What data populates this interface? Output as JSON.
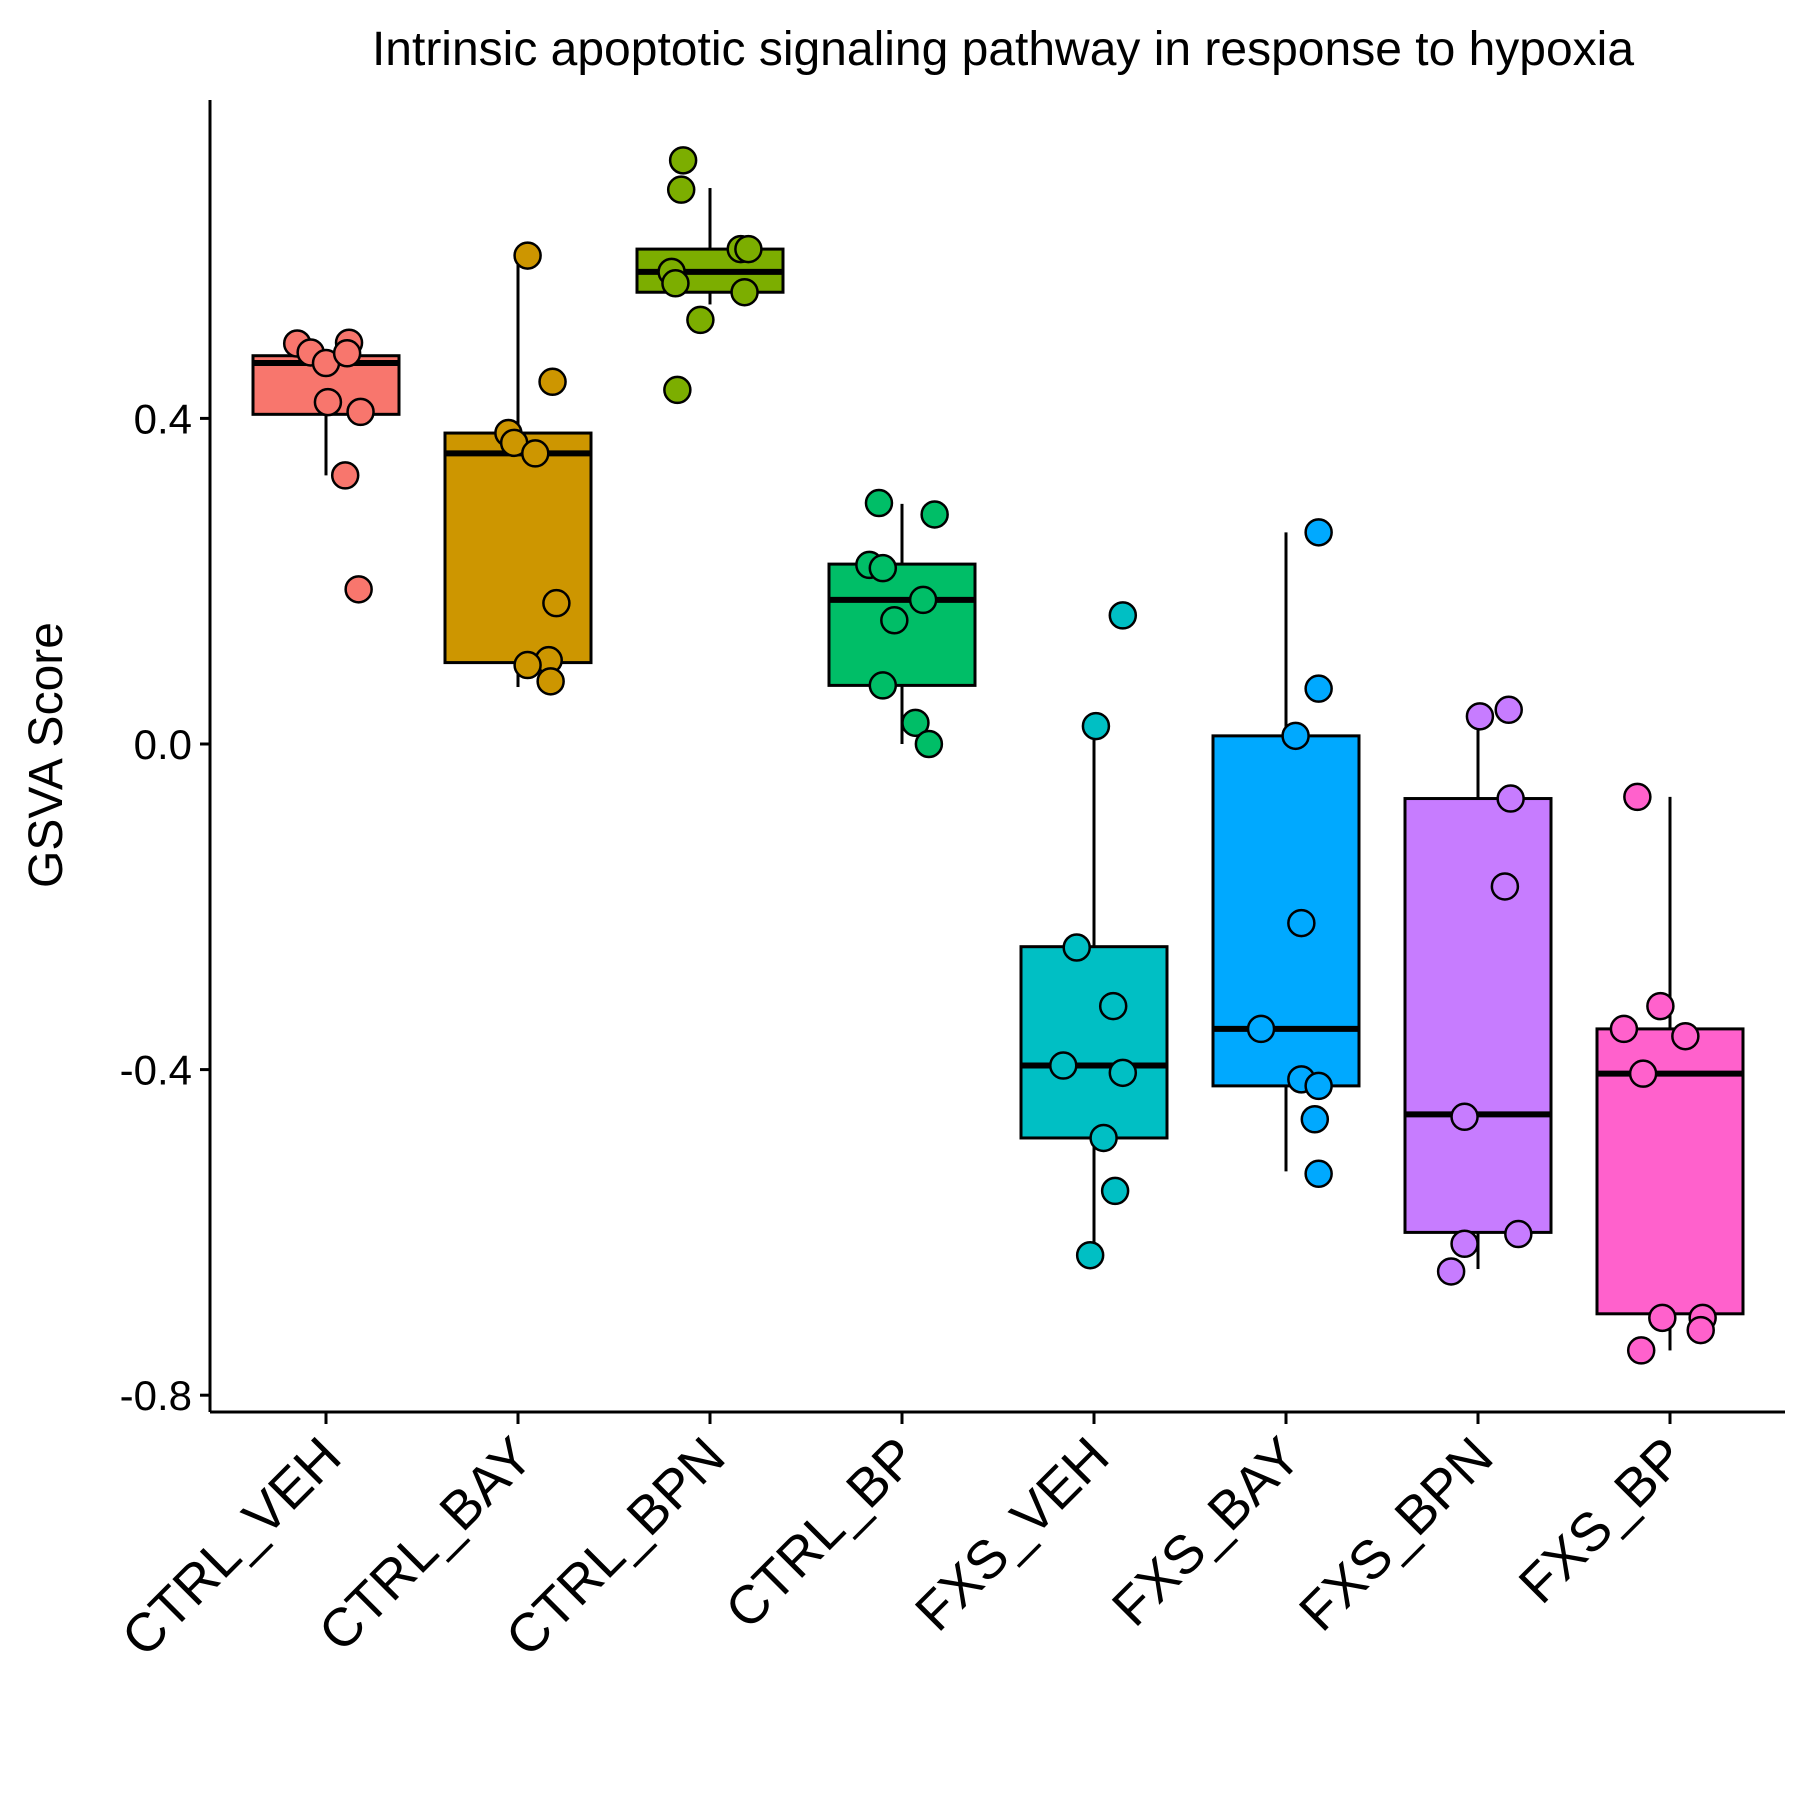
{
  "chart_data": {
    "type": "box",
    "title": "Intrinsic apoptotic signaling pathway in response to hypoxia",
    "xlabel": "",
    "ylabel": "GSVA Score",
    "ylim": [
      -0.82,
      0.79
    ],
    "yticks": [
      -0.8,
      -0.4,
      0.0,
      0.4
    ],
    "ytick_labels": [
      "-0.8",
      "-0.4",
      "0.0",
      "0.4"
    ],
    "grid": false,
    "legend": "none",
    "categories": [
      "CTRL_VEH",
      "CTRL_BAY",
      "CTRL_BPN",
      "CTRL_BP",
      "FXS_VEH",
      "FXS_BAY",
      "FXS_BPN",
      "FXS_BP"
    ],
    "colors": [
      "#F8766D",
      "#CD9600",
      "#7CAE00",
      "#00BE67",
      "#00BFC4",
      "#00A9FF",
      "#C77CFF",
      "#FF61CC"
    ],
    "boxes": [
      {
        "q1": 0.405,
        "median": 0.468,
        "q3": 0.477,
        "whisker_low": 0.33,
        "whisker_high": 0.477
      },
      {
        "q1": 0.1,
        "median": 0.357,
        "q3": 0.382,
        "whisker_low": 0.07,
        "whisker_high": 0.6
      },
      {
        "q1": 0.555,
        "median": 0.58,
        "q3": 0.608,
        "whisker_low": 0.54,
        "whisker_high": 0.683
      },
      {
        "q1": 0.072,
        "median": 0.177,
        "q3": 0.221,
        "whisker_low": 0.0,
        "whisker_high": 0.295
      },
      {
        "q1": -0.484,
        "median": -0.395,
        "q3": -0.249,
        "whisker_low": -0.625,
        "whisker_high": 0.022
      },
      {
        "q1": -0.42,
        "median": -0.35,
        "q3": 0.01,
        "whisker_low": -0.525,
        "whisker_high": 0.26
      },
      {
        "q1": -0.6,
        "median": -0.455,
        "q3": -0.067,
        "whisker_low": -0.645,
        "whisker_high": 0.04
      },
      {
        "q1": -0.7,
        "median": -0.405,
        "q3": -0.35,
        "whisker_low": -0.745,
        "whisker_high": -0.065
      }
    ],
    "points": [
      [
        [
          -0.15,
          0.492
        ],
        [
          -0.08,
          0.481
        ],
        [
          0.0,
          0.468
        ],
        [
          0.12,
          0.493
        ],
        [
          0.11,
          0.48
        ],
        [
          0.01,
          0.42
        ],
        [
          0.18,
          0.408
        ],
        [
          0.1,
          0.33
        ],
        [
          0.17,
          0.19
        ]
      ],
      [
        [
          0.05,
          0.6
        ],
        [
          0.18,
          0.445
        ],
        [
          -0.05,
          0.382
        ],
        [
          -0.02,
          0.37
        ],
        [
          0.09,
          0.357
        ],
        [
          0.2,
          0.173
        ],
        [
          0.16,
          0.103
        ],
        [
          0.05,
          0.097
        ],
        [
          0.17,
          0.077
        ]
      ],
      [
        [
          -0.14,
          0.717
        ],
        [
          -0.15,
          0.681
        ],
        [
          0.16,
          0.608
        ],
        [
          0.2,
          0.608
        ],
        [
          -0.2,
          0.58
        ],
        [
          -0.18,
          0.566
        ],
        [
          0.18,
          0.555
        ],
        [
          -0.05,
          0.521
        ],
        [
          -0.17,
          0.435
        ]
      ],
      [
        [
          -0.12,
          0.296
        ],
        [
          0.17,
          0.282
        ],
        [
          -0.17,
          0.22
        ],
        [
          -0.1,
          0.216
        ],
        [
          0.11,
          0.177
        ],
        [
          -0.04,
          0.152
        ],
        [
          -0.1,
          0.072
        ],
        [
          0.07,
          0.026
        ],
        [
          0.14,
          0.0
        ]
      ],
      [
        [
          0.15,
          0.158
        ],
        [
          0.01,
          0.022
        ],
        [
          -0.09,
          -0.25
        ],
        [
          0.1,
          -0.322
        ],
        [
          -0.16,
          -0.395
        ],
        [
          0.15,
          -0.404
        ],
        [
          0.05,
          -0.484
        ],
        [
          0.11,
          -0.549
        ],
        [
          -0.02,
          -0.628
        ]
      ],
      [
        [
          0.17,
          0.26
        ],
        [
          0.17,
          0.068
        ],
        [
          0.05,
          0.01
        ],
        [
          0.08,
          -0.22
        ],
        [
          -0.13,
          -0.35
        ],
        [
          0.08,
          -0.412
        ],
        [
          0.17,
          -0.42
        ],
        [
          0.15,
          -0.461
        ],
        [
          0.17,
          -0.528
        ]
      ],
      [
        [
          0.16,
          0.042
        ],
        [
          0.01,
          0.034
        ],
        [
          0.17,
          -0.067
        ],
        [
          0.14,
          -0.175
        ],
        [
          -0.07,
          -0.458
        ],
        [
          0.21,
          -0.602
        ],
        [
          -0.07,
          -0.614
        ],
        [
          -0.14,
          -0.648
        ]
      ],
      [
        [
          -0.17,
          -0.065
        ],
        [
          -0.05,
          -0.322
        ],
        [
          -0.24,
          -0.35
        ],
        [
          0.08,
          -0.359
        ],
        [
          -0.14,
          -0.405
        ],
        [
          -0.04,
          -0.705
        ],
        [
          0.17,
          -0.705
        ],
        [
          0.16,
          -0.72
        ],
        [
          -0.15,
          -0.745
        ]
      ]
    ]
  }
}
